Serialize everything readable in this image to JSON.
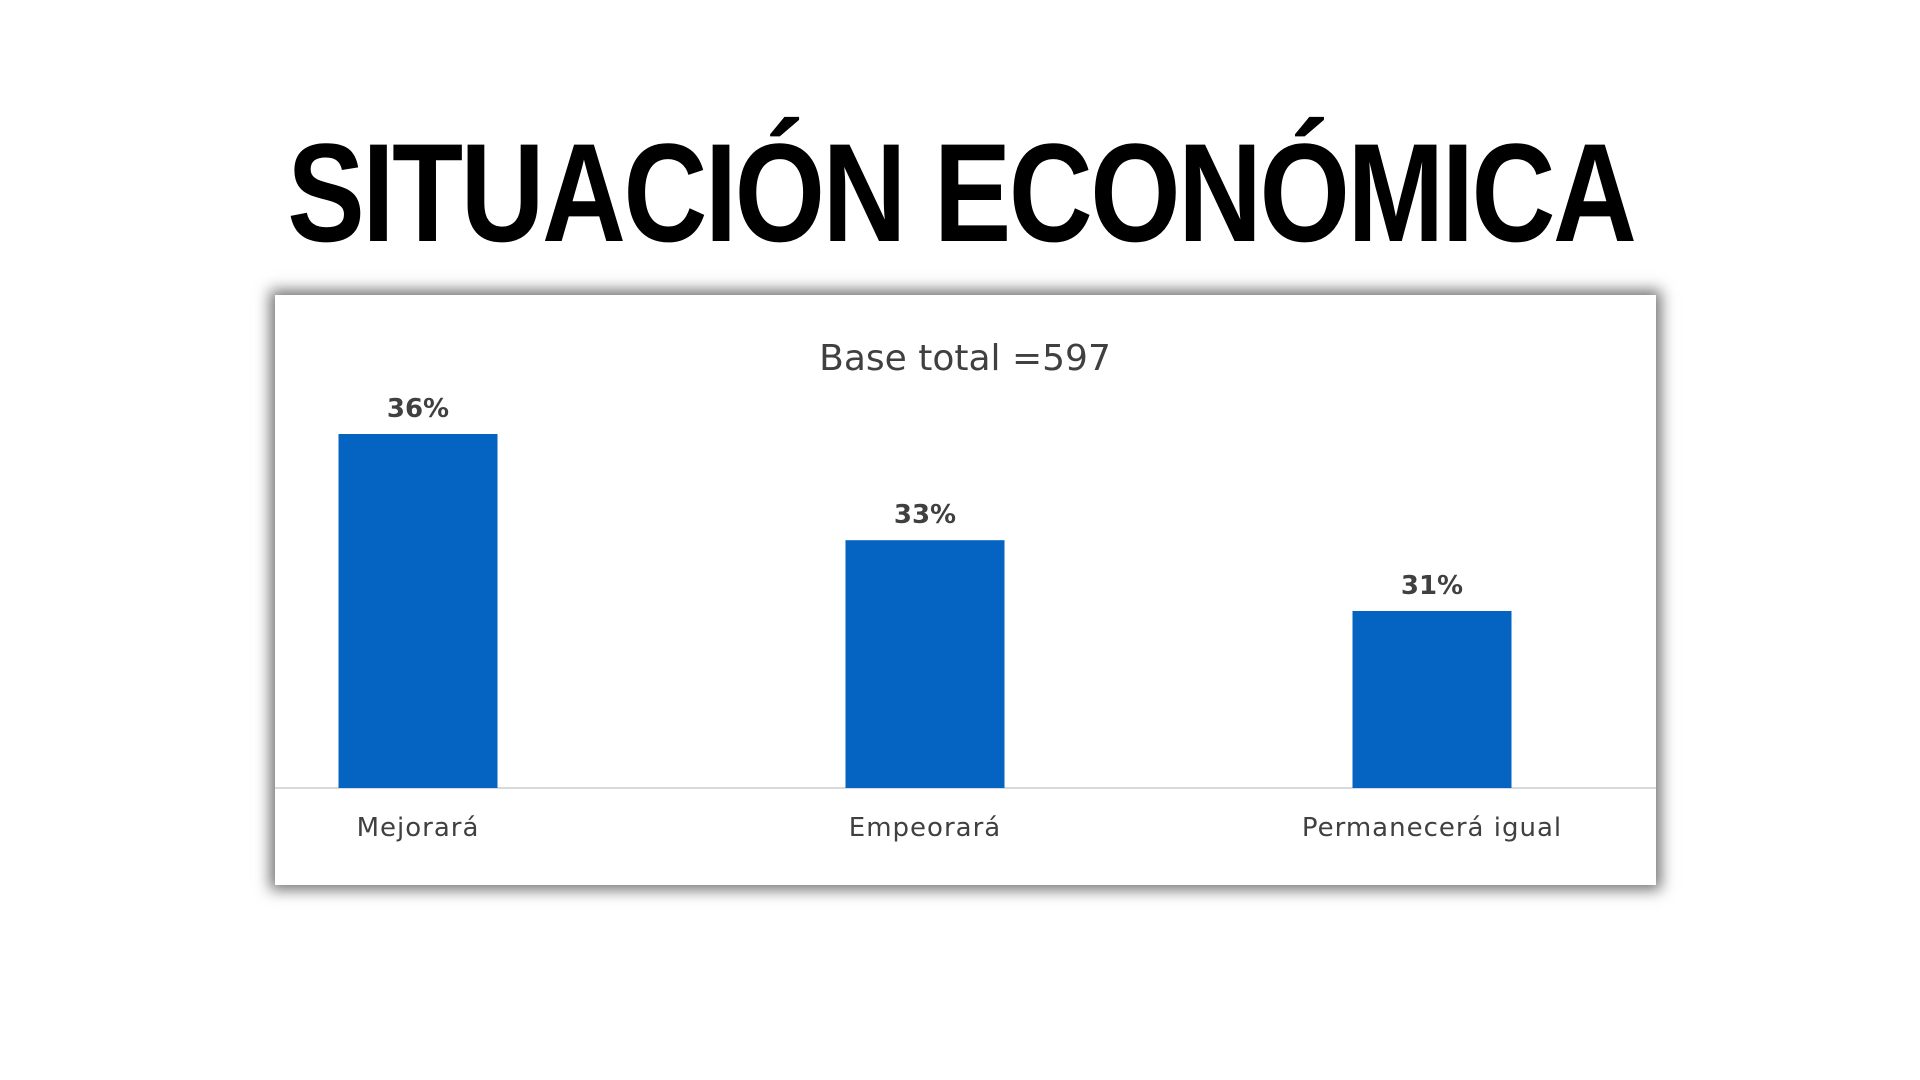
{
  "page": {
    "title": "SITUACIÓN ECONÓMICA"
  },
  "chart_data": {
    "type": "bar",
    "title": "Base total =597",
    "categories": [
      "Mejorará",
      "Empeorará",
      "Permanecerá igual"
    ],
    "values": [
      36,
      33,
      31
    ],
    "data_labels": [
      "36%",
      "33%",
      "31%"
    ],
    "xlabel": "",
    "ylabel": "",
    "ylim": [
      26,
      36
    ],
    "grid": false,
    "legend": "none",
    "colors": {
      "bar": "#0563C1",
      "axis": "#D9D9D9",
      "text": "#404040"
    }
  }
}
